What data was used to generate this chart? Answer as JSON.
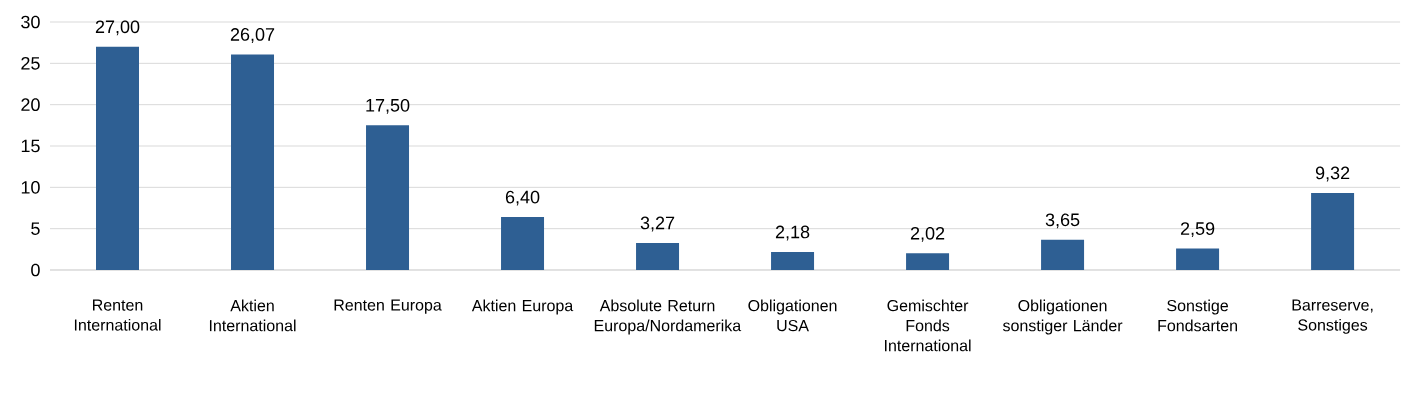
{
  "chart_data": {
    "type": "bar",
    "categories": [
      "Renten International",
      "Aktien International",
      "Renten Europa",
      "Aktien Europa",
      "Absolute Return Europa/Nordamerika",
      "Obligationen USA",
      "Gemischter Fonds International",
      "Obligationen sonstiger Länder",
      "Sonstige Fondsarten",
      "Barreserve, Sonstiges"
    ],
    "values": [
      27.0,
      26.07,
      17.5,
      6.4,
      3.27,
      2.18,
      2.02,
      3.65,
      2.59,
      9.32
    ],
    "value_labels": [
      "27,00",
      "26,07",
      "17,50",
      "6,40",
      "3,27",
      "2,18",
      "2,02",
      "3,65",
      "2,59",
      "9,32"
    ],
    "color": "#2e5f93",
    "ylim": [
      0,
      30
    ],
    "yticks": [
      0,
      5,
      10,
      15,
      20,
      25,
      30
    ],
    "grid": "y"
  }
}
